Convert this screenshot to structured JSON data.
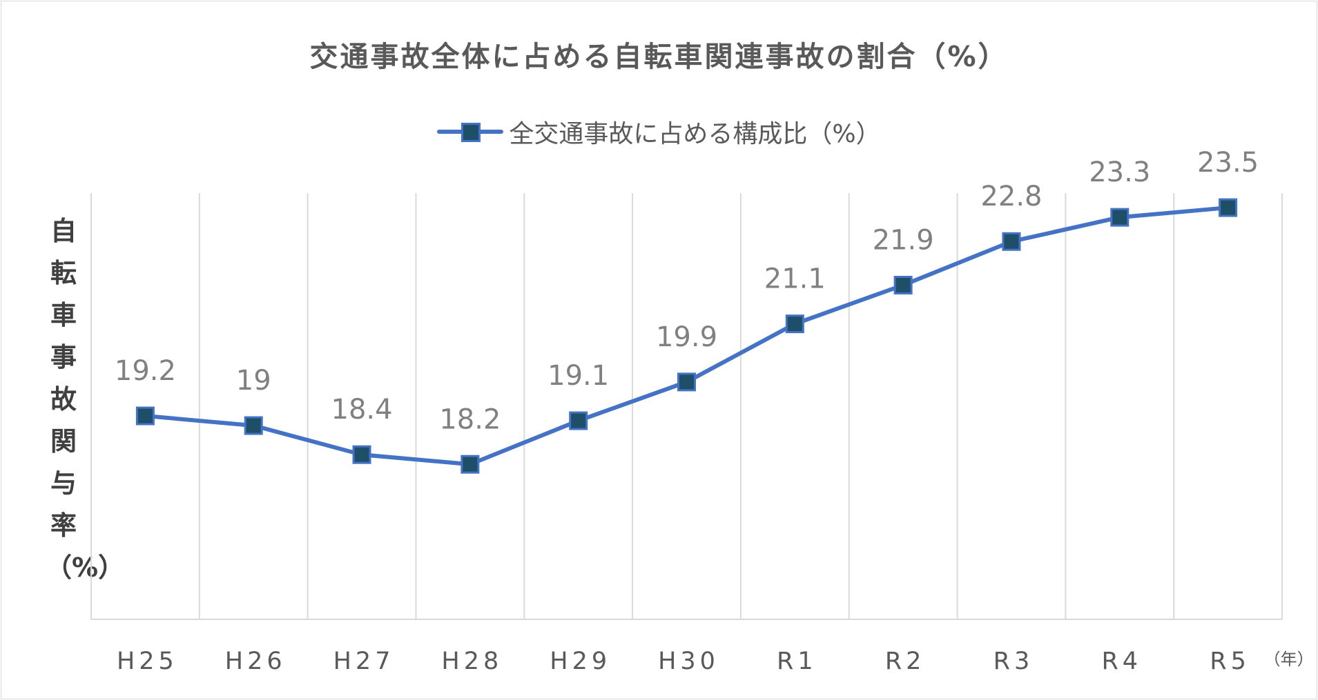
{
  "chart_data": {
    "type": "line",
    "title": "交通事故全体に占める自転車関連事故の割合（%）",
    "ylabel": "自転車事故関与率（%）",
    "xlabel_unit": "（年）",
    "categories": [
      "H25",
      "H26",
      "H27",
      "H28",
      "H29",
      "H30",
      "R1",
      "R2",
      "R3",
      "R4",
      "R5"
    ],
    "series": [
      {
        "name": "全交通事故に占める構成比（%）",
        "values": [
          19.2,
          19,
          18.4,
          18.2,
          19.1,
          19.9,
          21.1,
          21.9,
          22.8,
          23.3,
          23.5
        ],
        "color": "#4472c4",
        "marker_color": "#1f4e69"
      }
    ],
    "ylim": [
      15.0,
      23.8
    ],
    "grid": "vertical",
    "legend_position": "top",
    "data_labels": true
  }
}
